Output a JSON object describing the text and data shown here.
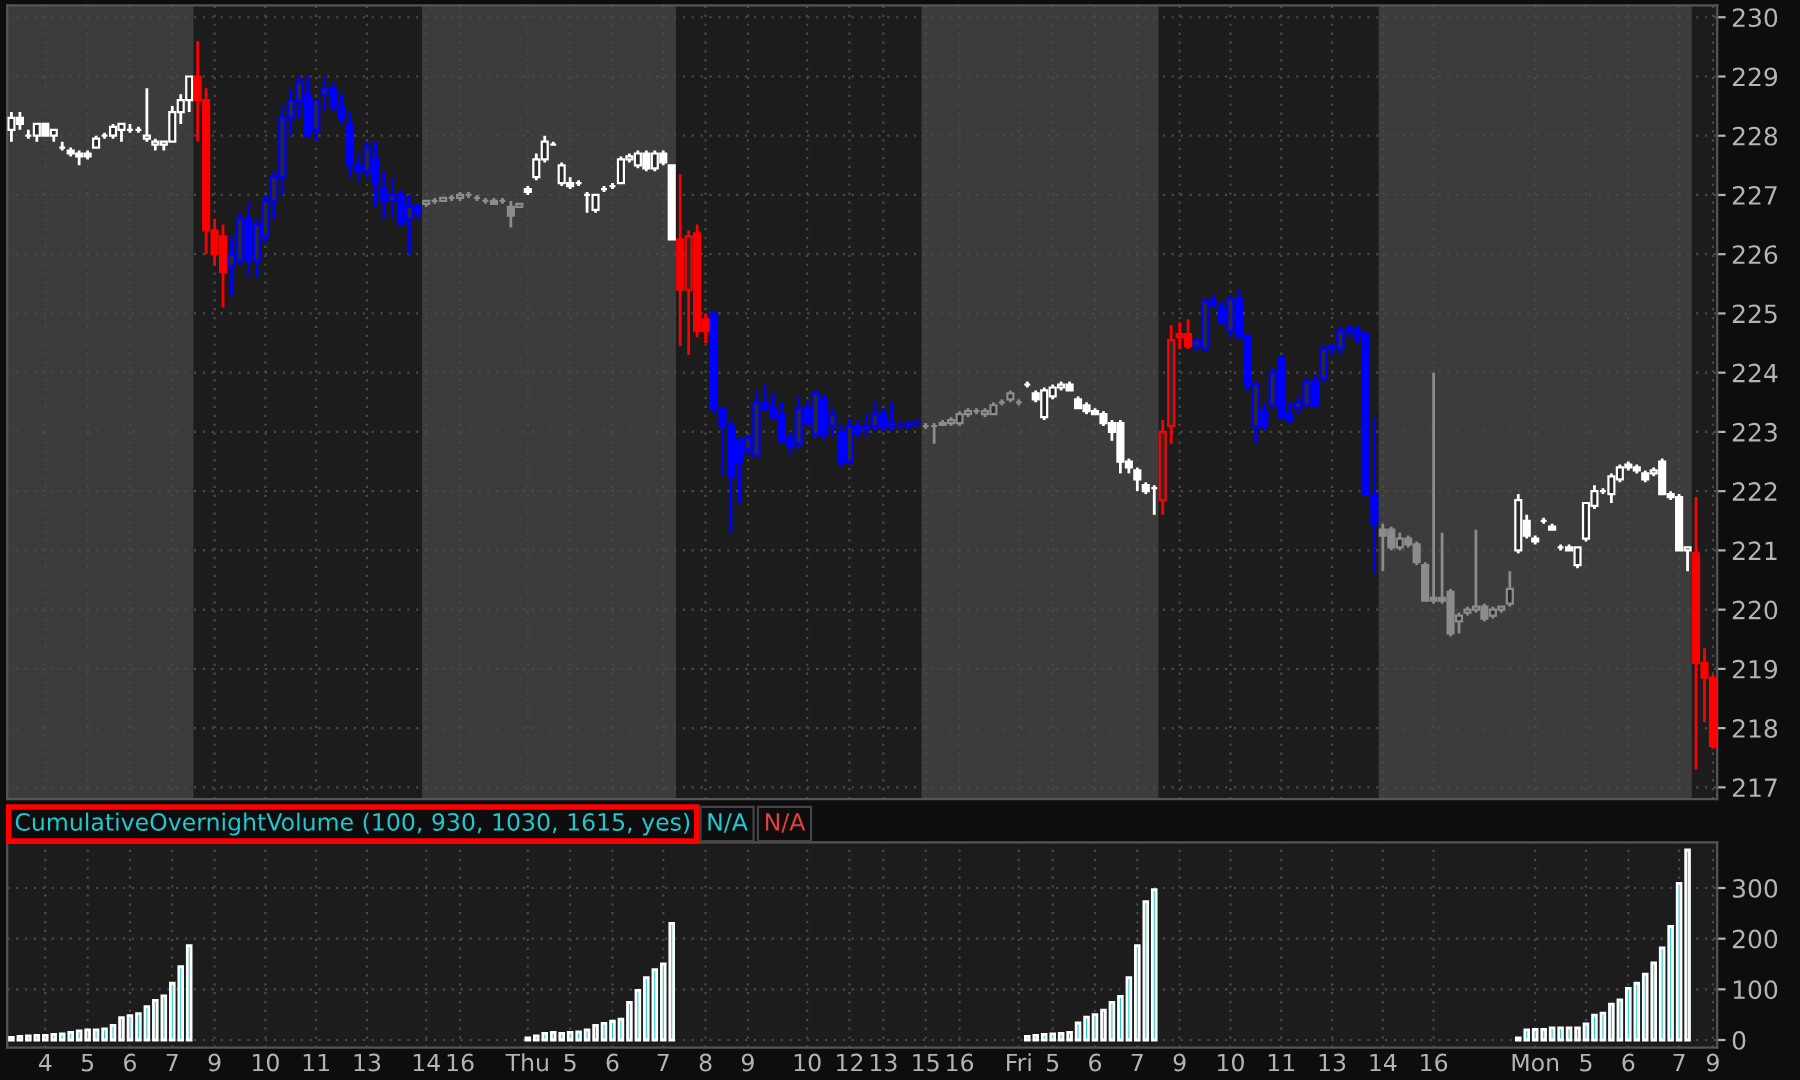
{
  "chart_data": [
    {
      "type": "candlestick",
      "tick_labels": "y",
      "grid": true,
      "categories": [
        null,
        null,
        null,
        null,
        null,
        null,
        null,
        null,
        null,
        null,
        null,
        null,
        null,
        null,
        null,
        null,
        null,
        null,
        null,
        null,
        null,
        null,
        null,
        null,
        null,
        null,
        null,
        null,
        null,
        null,
        null,
        null,
        null,
        null,
        null,
        null,
        null,
        null,
        null,
        null,
        null,
        null,
        null,
        null,
        null,
        null,
        null,
        null,
        null,
        null,
        null,
        null,
        null,
        null,
        null,
        null,
        null,
        null,
        null,
        null,
        null,
        null,
        null,
        null,
        null,
        null,
        null,
        null,
        null,
        null,
        null,
        null,
        null,
        null,
        null,
        null,
        null,
        null,
        null,
        null,
        null,
        null,
        null,
        null,
        null,
        null,
        null,
        null,
        null,
        null,
        null,
        null,
        null,
        null,
        null,
        null,
        null,
        null,
        null,
        null,
        null,
        null,
        null,
        null,
        null,
        null,
        null,
        null,
        null,
        null,
        null,
        null,
        null,
        null,
        null,
        null,
        null,
        null,
        null,
        null,
        null,
        null,
        null,
        null,
        null,
        null,
        null,
        null,
        null,
        null,
        null,
        null,
        null,
        null,
        null,
        null,
        null,
        null,
        null,
        null,
        null,
        null,
        null,
        null,
        null,
        null,
        null,
        null,
        null,
        null,
        null,
        null,
        null,
        null,
        null,
        null,
        null,
        null,
        null,
        null,
        null,
        null,
        null,
        null,
        null,
        null,
        null,
        null,
        null,
        null,
        null,
        null,
        null,
        null,
        null,
        null,
        null,
        null,
        null,
        null,
        null,
        null,
        null,
        null,
        null,
        null,
        null,
        null,
        null,
        null,
        null,
        null,
        null,
        null,
        null,
        null,
        null,
        null,
        null,
        null,
        null,
        null
      ],
      "ylim": [
        216.8,
        230.2
      ],
      "yticks": [
        217,
        218,
        219,
        220,
        221,
        222,
        223,
        224,
        225,
        226,
        227,
        228,
        229,
        230
      ],
      "ohlc": [
        [
          228.1,
          228.4,
          227.9,
          228.3
        ],
        [
          228.3,
          228.4,
          228.1,
          228.2
        ],
        [
          228.0,
          228.1,
          227.95,
          228.0
        ],
        [
          228.0,
          228.2,
          227.9,
          228.2
        ],
        [
          228.2,
          228.2,
          228.0,
          228.0
        ],
        [
          228.0,
          228.1,
          227.9,
          228.1
        ],
        [
          227.8,
          227.9,
          227.75,
          227.8
        ],
        [
          227.75,
          227.8,
          227.65,
          227.7
        ],
        [
          227.7,
          227.75,
          227.5,
          227.65
        ],
        [
          227.7,
          227.75,
          227.6,
          227.65
        ],
        [
          227.8,
          228.0,
          227.8,
          227.95
        ],
        [
          228.0,
          228.05,
          227.95,
          228.0
        ],
        [
          228.0,
          228.2,
          227.95,
          228.15
        ],
        [
          228.1,
          228.2,
          227.9,
          228.2
        ],
        [
          228.1,
          228.2,
          228.05,
          228.1
        ],
        [
          228.1,
          228.15,
          228.05,
          228.1
        ],
        [
          227.95,
          228.8,
          227.9,
          228.0
        ],
        [
          227.85,
          227.95,
          227.75,
          227.9
        ],
        [
          227.85,
          227.9,
          227.75,
          227.9
        ],
        [
          227.9,
          228.5,
          227.9,
          228.4
        ],
        [
          228.4,
          228.7,
          228.2,
          228.6
        ],
        [
          228.6,
          229.0,
          228.4,
          229.0
        ],
        [
          229.0,
          229.6,
          227.9,
          228.6
        ],
        [
          228.6,
          228.8,
          226.0,
          226.4
        ],
        [
          226.4,
          226.6,
          225.8,
          226.0
        ],
        [
          226.3,
          226.5,
          225.1,
          225.7
        ],
        [
          225.8,
          226.3,
          225.3,
          226.0
        ],
        [
          225.9,
          226.7,
          225.8,
          226.6
        ],
        [
          226.6,
          226.9,
          225.6,
          225.9
        ],
        [
          225.9,
          226.6,
          225.6,
          226.5
        ],
        [
          226.3,
          227.0,
          226.2,
          226.9
        ],
        [
          226.9,
          227.4,
          226.6,
          227.3
        ],
        [
          227.3,
          228.5,
          227.0,
          228.3
        ],
        [
          228.3,
          228.8,
          228.0,
          228.6
        ],
        [
          228.6,
          229.0,
          228.3,
          228.9
        ],
        [
          228.7,
          229.0,
          228.0,
          228.0
        ],
        [
          228.1,
          228.6,
          227.9,
          228.6
        ],
        [
          228.7,
          229.0,
          228.4,
          228.8
        ],
        [
          228.8,
          228.9,
          228.4,
          228.5
        ],
        [
          228.5,
          228.7,
          228.2,
          228.3
        ],
        [
          228.2,
          228.4,
          227.3,
          227.5
        ],
        [
          227.5,
          227.7,
          227.2,
          227.4
        ],
        [
          227.4,
          227.9,
          227.3,
          227.8
        ],
        [
          227.6,
          227.9,
          226.8,
          227.2
        ],
        [
          227.1,
          227.4,
          226.6,
          226.9
        ],
        [
          226.9,
          227.3,
          226.6,
          227.0
        ],
        [
          227.0,
          227.1,
          226.5,
          226.5
        ],
        [
          226.6,
          227.0,
          226.0,
          226.8
        ],
        [
          226.8,
          226.85,
          226.6,
          226.7
        ],
        [
          226.85,
          226.9,
          226.8,
          226.9
        ],
        [
          226.9,
          226.95,
          226.85,
          226.9
        ],
        [
          226.9,
          226.95,
          226.9,
          226.95
        ],
        [
          226.95,
          227.0,
          226.9,
          226.95
        ],
        [
          226.95,
          227.05,
          226.9,
          227.0
        ],
        [
          227.0,
          227.05,
          226.95,
          227.0
        ],
        [
          226.95,
          227.0,
          226.9,
          226.95
        ],
        [
          226.9,
          226.95,
          226.85,
          226.9
        ],
        [
          226.9,
          226.95,
          226.85,
          226.85
        ],
        [
          226.9,
          226.95,
          226.85,
          226.9
        ],
        [
          226.8,
          226.9,
          226.45,
          226.65
        ],
        [
          226.8,
          226.85,
          226.8,
          226.85
        ],
        [
          227.1,
          227.15,
          227.0,
          227.05
        ],
        [
          227.3,
          227.7,
          227.25,
          227.6
        ],
        [
          227.6,
          228.0,
          227.55,
          227.9
        ],
        [
          227.85,
          227.9,
          227.85,
          227.85
        ],
        [
          227.2,
          227.55,
          227.15,
          227.5
        ],
        [
          227.2,
          227.3,
          227.1,
          227.15
        ],
        [
          227.2,
          227.25,
          227.15,
          227.2
        ],
        [
          227.0,
          227.05,
          226.7,
          227.0
        ],
        [
          226.75,
          227.0,
          226.7,
          227.0
        ],
        [
          227.1,
          227.15,
          227.05,
          227.1
        ],
        [
          227.15,
          227.2,
          227.1,
          227.15
        ],
        [
          227.2,
          227.65,
          227.2,
          227.6
        ],
        [
          227.6,
          227.7,
          227.55,
          227.65
        ],
        [
          227.5,
          227.75,
          227.45,
          227.7
        ],
        [
          227.7,
          227.75,
          227.4,
          227.45
        ],
        [
          227.45,
          227.75,
          227.4,
          227.7
        ],
        [
          227.7,
          227.75,
          227.5,
          227.55
        ],
        [
          227.5,
          227.5,
          226.25,
          226.25
        ],
        [
          226.25,
          227.35,
          224.45,
          225.4
        ],
        [
          225.4,
          226.4,
          224.3,
          226.3
        ],
        [
          226.35,
          226.5,
          224.6,
          224.7
        ],
        [
          224.9,
          225.0,
          224.5,
          224.7
        ],
        [
          225.0,
          225.0,
          223.3,
          223.4
        ],
        [
          223.4,
          223.4,
          222.25,
          223.1
        ],
        [
          223.1,
          223.2,
          221.3,
          222.25
        ],
        [
          222.85,
          222.9,
          221.8,
          222.5
        ],
        [
          222.7,
          222.95,
          222.6,
          222.9
        ],
        [
          222.6,
          223.7,
          222.6,
          223.5
        ],
        [
          223.5,
          223.8,
          223.35,
          223.4
        ],
        [
          223.4,
          223.65,
          223.2,
          223.25
        ],
        [
          223.3,
          223.5,
          222.8,
          222.85
        ],
        [
          222.9,
          223.0,
          222.6,
          222.75
        ],
        [
          222.8,
          223.6,
          222.7,
          223.4
        ],
        [
          223.4,
          223.5,
          223.1,
          223.15
        ],
        [
          222.95,
          223.7,
          222.9,
          223.65
        ],
        [
          223.55,
          223.65,
          222.85,
          222.95
        ],
        [
          223.1,
          223.4,
          222.9,
          223.3
        ],
        [
          223.0,
          223.1,
          222.4,
          222.5
        ],
        [
          222.5,
          223.2,
          222.45,
          223.1
        ],
        [
          223.1,
          223.2,
          222.9,
          223.0
        ],
        [
          223.05,
          223.3,
          222.9,
          223.1
        ],
        [
          223.1,
          223.5,
          223.0,
          223.3
        ],
        [
          223.3,
          223.4,
          223.0,
          223.1
        ],
        [
          223.1,
          223.5,
          223.0,
          223.15
        ],
        [
          223.1,
          223.2,
          223.05,
          223.1
        ],
        [
          223.1,
          223.15,
          223.05,
          223.15
        ],
        [
          223.15,
          223.2,
          223.1,
          223.15
        ],
        [
          223.1,
          223.15,
          223.05,
          223.1
        ],
        [
          223.1,
          223.15,
          222.8,
          223.1
        ],
        [
          223.12,
          223.2,
          223.1,
          223.15
        ],
        [
          223.15,
          223.25,
          223.1,
          223.2
        ],
        [
          223.15,
          223.35,
          223.1,
          223.3
        ],
        [
          223.3,
          223.4,
          223.25,
          223.35
        ],
        [
          223.35,
          223.4,
          223.3,
          223.35
        ],
        [
          223.3,
          223.4,
          223.25,
          223.35
        ],
        [
          223.3,
          223.5,
          223.3,
          223.45
        ],
        [
          223.5,
          223.55,
          223.45,
          223.5
        ],
        [
          223.55,
          223.7,
          223.5,
          223.65
        ],
        [
          223.5,
          223.55,
          223.45,
          223.5
        ],
        [
          223.8,
          223.85,
          223.75,
          223.8
        ],
        [
          223.65,
          223.7,
          223.5,
          223.55
        ],
        [
          223.25,
          223.75,
          223.2,
          223.7
        ],
        [
          223.6,
          223.8,
          223.55,
          223.75
        ],
        [
          223.75,
          223.85,
          223.7,
          223.8
        ],
        [
          223.8,
          223.85,
          223.7,
          223.7
        ],
        [
          223.55,
          223.6,
          223.4,
          223.4
        ],
        [
          223.45,
          223.5,
          223.3,
          223.35
        ],
        [
          223.35,
          223.4,
          223.3,
          223.3
        ],
        [
          223.3,
          223.35,
          223.1,
          223.15
        ],
        [
          223.15,
          223.2,
          222.85,
          223.0
        ],
        [
          223.15,
          223.2,
          222.3,
          222.5
        ],
        [
          222.5,
          222.55,
          222.3,
          222.4
        ],
        [
          222.35,
          222.4,
          222.0,
          222.2
        ],
        [
          222.1,
          222.15,
          221.95,
          222.0
        ],
        [
          222.05,
          222.1,
          221.6,
          222.05
        ],
        [
          221.85,
          223.2,
          221.6,
          223.0
        ],
        [
          223.1,
          224.8,
          222.8,
          224.55
        ],
        [
          224.6,
          224.85,
          224.4,
          224.65
        ],
        [
          224.65,
          224.9,
          224.4,
          224.45
        ],
        [
          224.45,
          224.6,
          224.35,
          224.55
        ],
        [
          224.4,
          225.25,
          224.35,
          225.2
        ],
        [
          225.2,
          225.3,
          225.1,
          225.15
        ],
        [
          225.1,
          225.2,
          224.8,
          224.85
        ],
        [
          224.7,
          225.3,
          224.6,
          225.25
        ],
        [
          225.25,
          225.4,
          224.6,
          224.6
        ],
        [
          224.6,
          224.65,
          223.7,
          223.8
        ],
        [
          223.1,
          223.85,
          222.8,
          223.8
        ],
        [
          223.35,
          223.5,
          223.0,
          223.1
        ],
        [
          223.45,
          224.1,
          223.4,
          224.0
        ],
        [
          224.25,
          224.3,
          223.2,
          223.25
        ],
        [
          223.3,
          223.5,
          223.15,
          223.2
        ],
        [
          223.4,
          223.6,
          223.3,
          223.5
        ],
        [
          223.45,
          223.9,
          223.4,
          223.85
        ],
        [
          223.85,
          223.95,
          223.4,
          223.45
        ],
        [
          223.9,
          224.45,
          223.85,
          224.4
        ],
        [
          224.4,
          224.5,
          224.3,
          224.45
        ],
        [
          224.4,
          224.8,
          224.3,
          224.7
        ],
        [
          224.7,
          224.8,
          224.6,
          224.75
        ],
        [
          224.7,
          224.8,
          224.5,
          224.6
        ],
        [
          224.65,
          224.7,
          221.95,
          221.95
        ],
        [
          221.95,
          223.25,
          220.6,
          221.45
        ],
        [
          221.35,
          221.45,
          220.65,
          221.25
        ],
        [
          221.35,
          221.4,
          221.0,
          221.05
        ],
        [
          221.05,
          221.3,
          221.0,
          221.2
        ],
        [
          221.2,
          221.25,
          221.05,
          221.1
        ],
        [
          221.1,
          221.15,
          220.75,
          220.8
        ],
        [
          220.75,
          220.8,
          220.15,
          220.15
        ],
        [
          220.2,
          224.0,
          220.1,
          220.15
        ],
        [
          220.2,
          221.3,
          220.1,
          220.15
        ],
        [
          220.3,
          220.35,
          219.55,
          219.6
        ],
        [
          219.8,
          219.95,
          219.6,
          219.9
        ],
        [
          219.95,
          220.05,
          219.9,
          220.0
        ],
        [
          220.0,
          221.35,
          219.95,
          220.05
        ],
        [
          220.05,
          220.1,
          219.8,
          219.85
        ],
        [
          219.9,
          220.05,
          219.85,
          220.0
        ],
        [
          220.0,
          220.05,
          219.95,
          220.05
        ],
        [
          220.1,
          220.65,
          220.05,
          220.35
        ],
        [
          221.0,
          221.95,
          220.95,
          221.85
        ],
        [
          221.5,
          221.6,
          221.2,
          221.25
        ],
        [
          221.2,
          221.25,
          221.1,
          221.15
        ],
        [
          221.5,
          221.55,
          221.45,
          221.5
        ],
        [
          221.4,
          221.45,
          221.35,
          221.35
        ],
        [
          221.05,
          221.1,
          221.0,
          221.05
        ],
        [
          221.05,
          221.1,
          221.0,
          221.0
        ],
        [
          220.75,
          221.05,
          220.7,
          221.05
        ],
        [
          221.2,
          221.8,
          221.15,
          221.8
        ],
        [
          221.75,
          222.1,
          221.7,
          222.0
        ],
        [
          222.0,
          222.05,
          221.95,
          222.0
        ],
        [
          221.95,
          222.3,
          221.8,
          222.25
        ],
        [
          222.2,
          222.45,
          222.15,
          222.4
        ],
        [
          222.45,
          222.5,
          222.35,
          222.4
        ],
        [
          222.4,
          222.45,
          222.3,
          222.35
        ],
        [
          222.3,
          222.35,
          222.15,
          222.2
        ],
        [
          222.3,
          222.4,
          222.25,
          222.35
        ],
        [
          222.5,
          222.55,
          221.95,
          221.95
        ],
        [
          221.95,
          222.0,
          221.85,
          221.9
        ],
        [
          221.9,
          221.95,
          221.0,
          221.0
        ],
        [
          221.0,
          221.05,
          220.65,
          221.05
        ],
        [
          220.95,
          221.9,
          217.3,
          219.1
        ],
        [
          219.1,
          219.35,
          218.1,
          218.85
        ],
        [
          218.85,
          218.9,
          217.65,
          217.7
        ]
      ],
      "colors": [
        "#ffffff",
        "#ffffff",
        "#ffffff",
        "#ffffff",
        "#ffffff",
        "#ffffff",
        "#ffffff",
        "#ffffff",
        "#ffffff",
        "#ffffff",
        "#ffffff",
        "#ffffff",
        "#ffffff",
        "#ffffff",
        "#ffffff",
        "#ffffff",
        "#ffffff",
        "#ffffff",
        "#ffffff",
        "#ffffff",
        "#ffffff",
        "#ffffff",
        "#ff0000",
        "#ff0000",
        "#ff0000",
        "#ff0000",
        "#0000ff",
        "#0000ff",
        "#0000ff",
        "#0000ff",
        "#0000ff",
        "#0000ff",
        "#0000ff",
        "#0000ff",
        "#0000ff",
        "#0000ff",
        "#0000ff",
        "#0000ff",
        "#0000ff",
        "#0000ff",
        "#0000ff",
        "#0000ff",
        "#0000ff",
        "#0000ff",
        "#0000ff",
        "#0000ff",
        "#0000ff",
        "#0000ff",
        "#0000ff",
        "#8c8c8c",
        "#8c8c8c",
        "#8c8c8c",
        "#8c8c8c",
        "#8c8c8c",
        "#8c8c8c",
        "#8c8c8c",
        "#8c8c8c",
        "#8c8c8c",
        "#8c8c8c",
        "#8c8c8c",
        "#8c8c8c",
        "#ffffff",
        "#ffffff",
        "#ffffff",
        "#ffffff",
        "#ffffff",
        "#ffffff",
        "#ffffff",
        "#ffffff",
        "#ffffff",
        "#ffffff",
        "#ffffff",
        "#ffffff",
        "#ffffff",
        "#ffffff",
        "#ffffff",
        "#ffffff",
        "#ffffff",
        "#ffffff",
        "#ff0000",
        "#ff0000",
        "#ff0000",
        "#ff0000",
        "#0000ff",
        "#0000ff",
        "#0000ff",
        "#0000ff",
        "#0000ff",
        "#0000ff",
        "#0000ff",
        "#0000ff",
        "#0000ff",
        "#0000ff",
        "#0000ff",
        "#0000ff",
        "#0000ff",
        "#0000ff",
        "#0000ff",
        "#0000ff",
        "#0000ff",
        "#0000ff",
        "#0000ff",
        "#0000ff",
        "#0000ff",
        "#0000ff",
        "#0000ff",
        "#0000ff",
        "#0000ff",
        "#8c8c8c",
        "#8c8c8c",
        "#8c8c8c",
        "#8c8c8c",
        "#8c8c8c",
        "#8c8c8c",
        "#8c8c8c",
        "#8c8c8c",
        "#8c8c8c",
        "#8c8c8c",
        "#8c8c8c",
        "#8c8c8c",
        "#ffffff",
        "#ffffff",
        "#ffffff",
        "#ffffff",
        "#ffffff",
        "#ffffff",
        "#ffffff",
        "#ffffff",
        "#ffffff",
        "#ffffff",
        "#ffffff",
        "#ffffff",
        "#ffffff",
        "#ffffff",
        "#ffffff",
        "#ffffff",
        "#ff0000",
        "#ff0000",
        "#ff0000",
        "#ff0000",
        "#0000ff",
        "#0000ff",
        "#0000ff",
        "#0000ff",
        "#0000ff",
        "#0000ff",
        "#0000ff",
        "#0000ff",
        "#0000ff",
        "#0000ff",
        "#0000ff",
        "#0000ff",
        "#0000ff",
        "#0000ff",
        "#0000ff",
        "#0000ff",
        "#0000ff",
        "#0000ff",
        "#0000ff",
        "#0000ff",
        "#0000ff",
        "#0000ff",
        "#8c8c8c",
        "#8c8c8c",
        "#8c8c8c",
        "#8c8c8c",
        "#8c8c8c",
        "#8c8c8c",
        "#8c8c8c",
        "#8c8c8c",
        "#8c8c8c",
        "#8c8c8c",
        "#8c8c8c",
        "#8c8c8c",
        "#8c8c8c",
        "#8c8c8c",
        "#8c8c8c",
        "#8c8c8c",
        "#ffffff",
        "#ffffff",
        "#ffffff",
        "#ffffff",
        "#ffffff",
        "#ffffff",
        "#ffffff",
        "#ffffff",
        "#ffffff",
        "#ffffff",
        "#ffffff",
        "#ffffff",
        "#ffffff",
        "#ffffff",
        "#ffffff",
        "#ffffff",
        "#ffffff",
        "#ffffff",
        "#ffffff",
        "#ffffff",
        "#ffffff",
        "#ff0000",
        "#ff0000",
        "#ff0000"
      ]
    },
    {
      "type": "bar",
      "grid": true,
      "color": "#20c8d0",
      "annotations": [
        "CumulativeOvernightVolume (100, 930, 1030, 1615, yes)",
        "N/A",
        "N/A"
      ],
      "categories": [
        null,
        null,
        null,
        null,
        "4",
        null,
        null,
        null,
        null,
        "5",
        null,
        null,
        null,
        null,
        "6",
        null,
        null,
        null,
        null,
        "7",
        null,
        null,
        null,
        null,
        "9",
        null,
        null,
        null,
        null,
        null,
        "10",
        null,
        null,
        null,
        null,
        null,
        "11",
        null,
        null,
        null,
        null,
        null,
        "13",
        null,
        null,
        null,
        null,
        null,
        null,
        "14",
        null,
        null,
        null,
        "16",
        null,
        null,
        null,
        null,
        null,
        null,
        null,
        "Thu",
        null,
        null,
        null,
        null,
        "5",
        null,
        null,
        null,
        null,
        "6",
        null,
        null,
        null,
        null,
        null,
        "7",
        null,
        null,
        null,
        null,
        "8",
        null,
        null,
        null,
        null,
        "9",
        null,
        null,
        null,
        null,
        null,
        null,
        "10",
        null,
        null,
        null,
        null,
        "12",
        null,
        null,
        null,
        "13",
        null,
        null,
        null,
        null,
        "15",
        null,
        null,
        null,
        "16",
        null,
        null,
        null,
        null,
        null,
        null,
        "Fri",
        null,
        null,
        null,
        "5",
        null,
        null,
        null,
        null,
        "6",
        null,
        null,
        null,
        null,
        "7",
        null,
        null,
        null,
        null,
        "9",
        null,
        null,
        null,
        null,
        null,
        "10",
        null,
        null,
        null,
        null,
        null,
        "11",
        null,
        null,
        null,
        null,
        null,
        "13",
        null,
        null,
        null,
        null,
        null,
        "14",
        null,
        null,
        null,
        null,
        null,
        "16",
        null,
        null,
        null,
        null,
        null,
        null,
        null,
        null,
        null,
        null,
        null,
        "Mon",
        null,
        null,
        null,
        null,
        null,
        "5",
        null,
        null,
        null,
        null,
        "6",
        null,
        null,
        null,
        null,
        null,
        "7",
        null,
        null,
        null,
        "9"
      ],
      "ylim": [
        -15,
        390
      ],
      "yticks": [
        0,
        100,
        200,
        300
      ],
      "values": [
        5,
        7,
        8,
        9,
        9,
        11,
        12,
        15,
        18,
        20,
        20,
        22,
        29,
        44,
        48,
        52,
        66,
        78,
        87,
        112,
        145,
        186,
        null,
        null,
        null,
        null,
        null,
        null,
        null,
        null,
        null,
        null,
        null,
        null,
        null,
        null,
        null,
        null,
        null,
        null,
        null,
        null,
        null,
        null,
        null,
        null,
        null,
        null,
        null,
        null,
        null,
        null,
        null,
        null,
        null,
        null,
        null,
        null,
        null,
        null,
        null,
        4,
        8,
        13,
        15,
        13,
        15,
        16,
        20,
        29,
        33,
        37,
        41,
        74,
        98,
        123,
        139,
        150,
        230,
        null,
        null,
        null,
        null,
        null,
        null,
        null,
        null,
        null,
        null,
        null,
        null,
        null,
        null,
        null,
        null,
        null,
        null,
        null,
        null,
        null,
        null,
        null,
        null,
        null,
        null,
        null,
        null,
        null,
        null,
        null,
        null,
        null,
        null,
        null,
        null,
        null,
        null,
        null,
        null,
        null,
        7,
        9,
        11,
        12,
        13,
        15,
        34,
        45,
        50,
        59,
        74,
        86,
        123,
        186,
        273,
        297,
        null,
        null,
        null,
        null,
        null,
        null,
        null,
        null,
        null,
        null,
        null,
        null,
        null,
        null,
        null,
        null,
        null,
        null,
        null,
        null,
        null,
        null,
        null,
        null,
        null,
        null,
        null,
        null,
        null,
        null,
        null,
        null,
        null,
        null,
        null,
        null,
        null,
        null,
        null,
        null,
        null,
        null,
        4,
        20,
        21,
        21,
        24,
        24,
        24,
        24,
        32,
        49,
        53,
        71,
        79,
        102,
        112,
        130,
        152,
        182,
        224,
        309,
        375,
        null,
        null,
        null
      ]
    }
  ]
}
